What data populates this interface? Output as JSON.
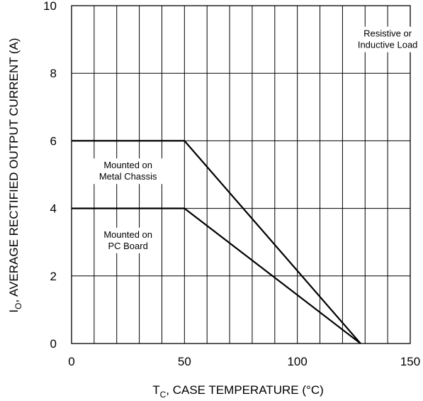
{
  "chart_data": {
    "type": "line",
    "xlabel": {
      "main": "T",
      "sub": "C",
      "rest": ", CASE TEMPERATURE (°C)"
    },
    "ylabel": {
      "main": "I",
      "sub": "O",
      "rest": ", AVERAGE RECTIFIED OUTPUT CURRENT (A)"
    },
    "xlim": [
      0,
      150
    ],
    "ylim": [
      0,
      10
    ],
    "x_ticks": [
      0,
      50,
      100,
      150
    ],
    "y_ticks": [
      0,
      2,
      4,
      6,
      8,
      10
    ],
    "x_minor_step": 10,
    "grid": true,
    "legend": "none",
    "series": [
      {
        "name": "Mounted on Metal Chassis",
        "x": [
          0,
          50,
          128
        ],
        "y": [
          6,
          6,
          0
        ]
      },
      {
        "name": "Mounted on PC Board",
        "x": [
          0,
          50,
          128
        ],
        "y": [
          4,
          4,
          0
        ]
      }
    ],
    "annotations": [
      {
        "lines": [
          "Resistive or",
          "Inductive Load"
        ],
        "x": 140,
        "y": 9.0
      },
      {
        "lines": [
          "Mounted on",
          "Metal Chassis"
        ],
        "x": 25,
        "y": 5.1
      },
      {
        "lines": [
          "Mounted on",
          "PC Board"
        ],
        "x": 25,
        "y": 3.05
      }
    ]
  }
}
